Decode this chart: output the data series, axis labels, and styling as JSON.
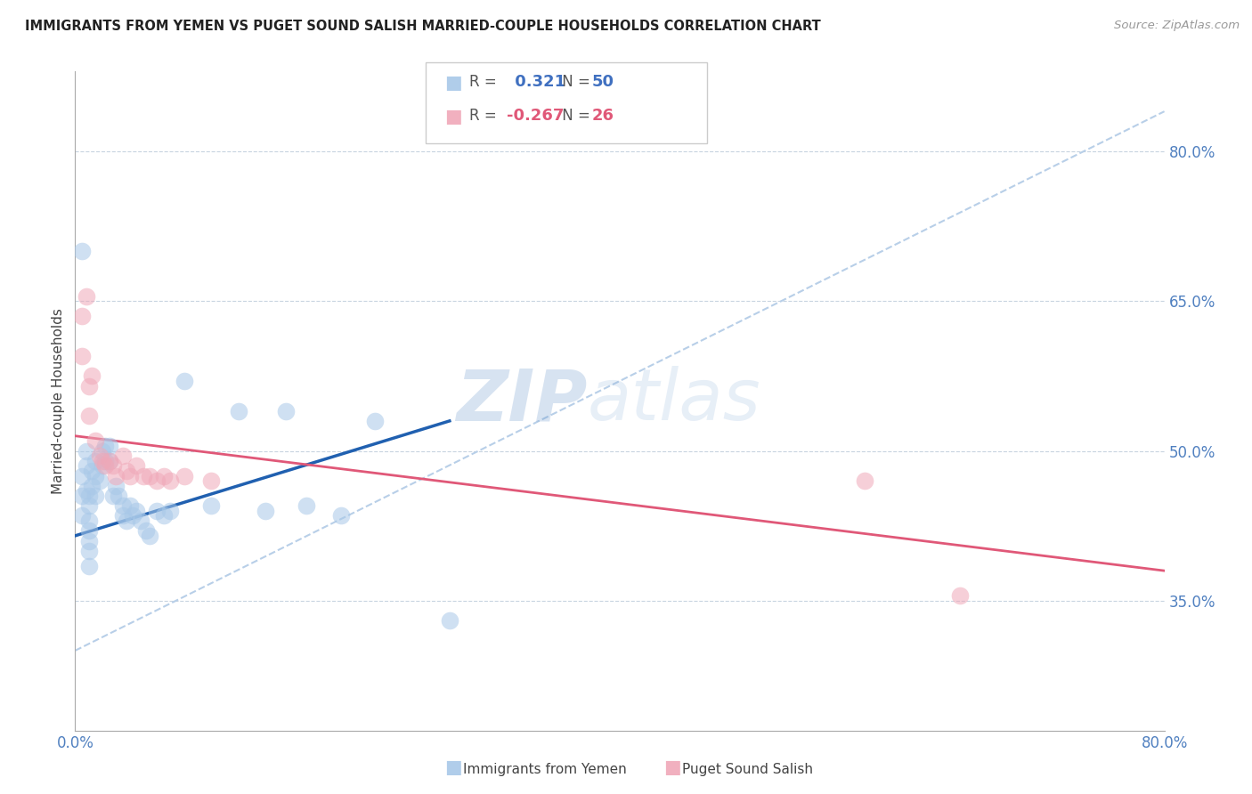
{
  "title": "IMMIGRANTS FROM YEMEN VS PUGET SOUND SALISH MARRIED-COUPLE HOUSEHOLDS CORRELATION CHART",
  "source": "Source: ZipAtlas.com",
  "ylabel": "Married-couple Households",
  "xlim": [
    0.0,
    0.8
  ],
  "ylim": [
    0.22,
    0.88
  ],
  "yticks": [
    0.35,
    0.5,
    0.65,
    0.8
  ],
  "xticks": [
    0.0,
    0.1,
    0.2,
    0.3,
    0.4,
    0.5,
    0.6,
    0.7,
    0.8
  ],
  "blue_color": "#a8c8e8",
  "pink_color": "#f0a8b8",
  "blue_line_color": "#2060b0",
  "pink_line_color": "#e05878",
  "dashed_line_color": "#b8cfe8",
  "legend_R_blue": "0.321",
  "legend_N_blue": "50",
  "legend_R_pink": "-0.267",
  "legend_N_pink": "26",
  "blue_scatter_x": [
    0.005,
    0.005,
    0.005,
    0.005,
    0.008,
    0.008,
    0.008,
    0.01,
    0.01,
    0.01,
    0.01,
    0.01,
    0.01,
    0.01,
    0.012,
    0.012,
    0.015,
    0.015,
    0.015,
    0.018,
    0.02,
    0.02,
    0.022,
    0.022,
    0.025,
    0.025,
    0.028,
    0.03,
    0.032,
    0.035,
    0.035,
    0.038,
    0.04,
    0.042,
    0.045,
    0.048,
    0.052,
    0.055,
    0.06,
    0.065,
    0.07,
    0.08,
    0.1,
    0.12,
    0.14,
    0.155,
    0.17,
    0.195,
    0.22,
    0.275
  ],
  "blue_scatter_y": [
    0.7,
    0.475,
    0.455,
    0.435,
    0.5,
    0.485,
    0.46,
    0.455,
    0.445,
    0.43,
    0.42,
    0.41,
    0.4,
    0.385,
    0.48,
    0.465,
    0.49,
    0.475,
    0.455,
    0.47,
    0.5,
    0.485,
    0.505,
    0.49,
    0.505,
    0.49,
    0.455,
    0.465,
    0.455,
    0.445,
    0.435,
    0.43,
    0.445,
    0.435,
    0.44,
    0.43,
    0.42,
    0.415,
    0.44,
    0.435,
    0.44,
    0.57,
    0.445,
    0.54,
    0.44,
    0.54,
    0.445,
    0.435,
    0.53,
    0.33
  ],
  "pink_scatter_x": [
    0.005,
    0.005,
    0.008,
    0.01,
    0.01,
    0.012,
    0.015,
    0.018,
    0.02,
    0.022,
    0.025,
    0.028,
    0.03,
    0.035,
    0.038,
    0.04,
    0.045,
    0.05,
    0.055,
    0.06,
    0.065,
    0.07,
    0.08,
    0.1,
    0.58,
    0.65
  ],
  "pink_scatter_y": [
    0.635,
    0.595,
    0.655,
    0.565,
    0.535,
    0.575,
    0.51,
    0.495,
    0.49,
    0.485,
    0.49,
    0.485,
    0.475,
    0.495,
    0.48,
    0.475,
    0.485,
    0.475,
    0.475,
    0.47,
    0.475,
    0.47,
    0.475,
    0.47,
    0.47,
    0.355
  ],
  "blue_line_x": [
    0.0,
    0.275
  ],
  "blue_line_y": [
    0.415,
    0.53
  ],
  "pink_line_x": [
    0.0,
    0.8
  ],
  "pink_line_y": [
    0.515,
    0.38
  ],
  "dashed_line_x": [
    0.0,
    0.8
  ],
  "dashed_line_y": [
    0.3,
    0.84
  ],
  "watermark_zip": "ZIP",
  "watermark_atlas": "atlas",
  "background_color": "#ffffff"
}
